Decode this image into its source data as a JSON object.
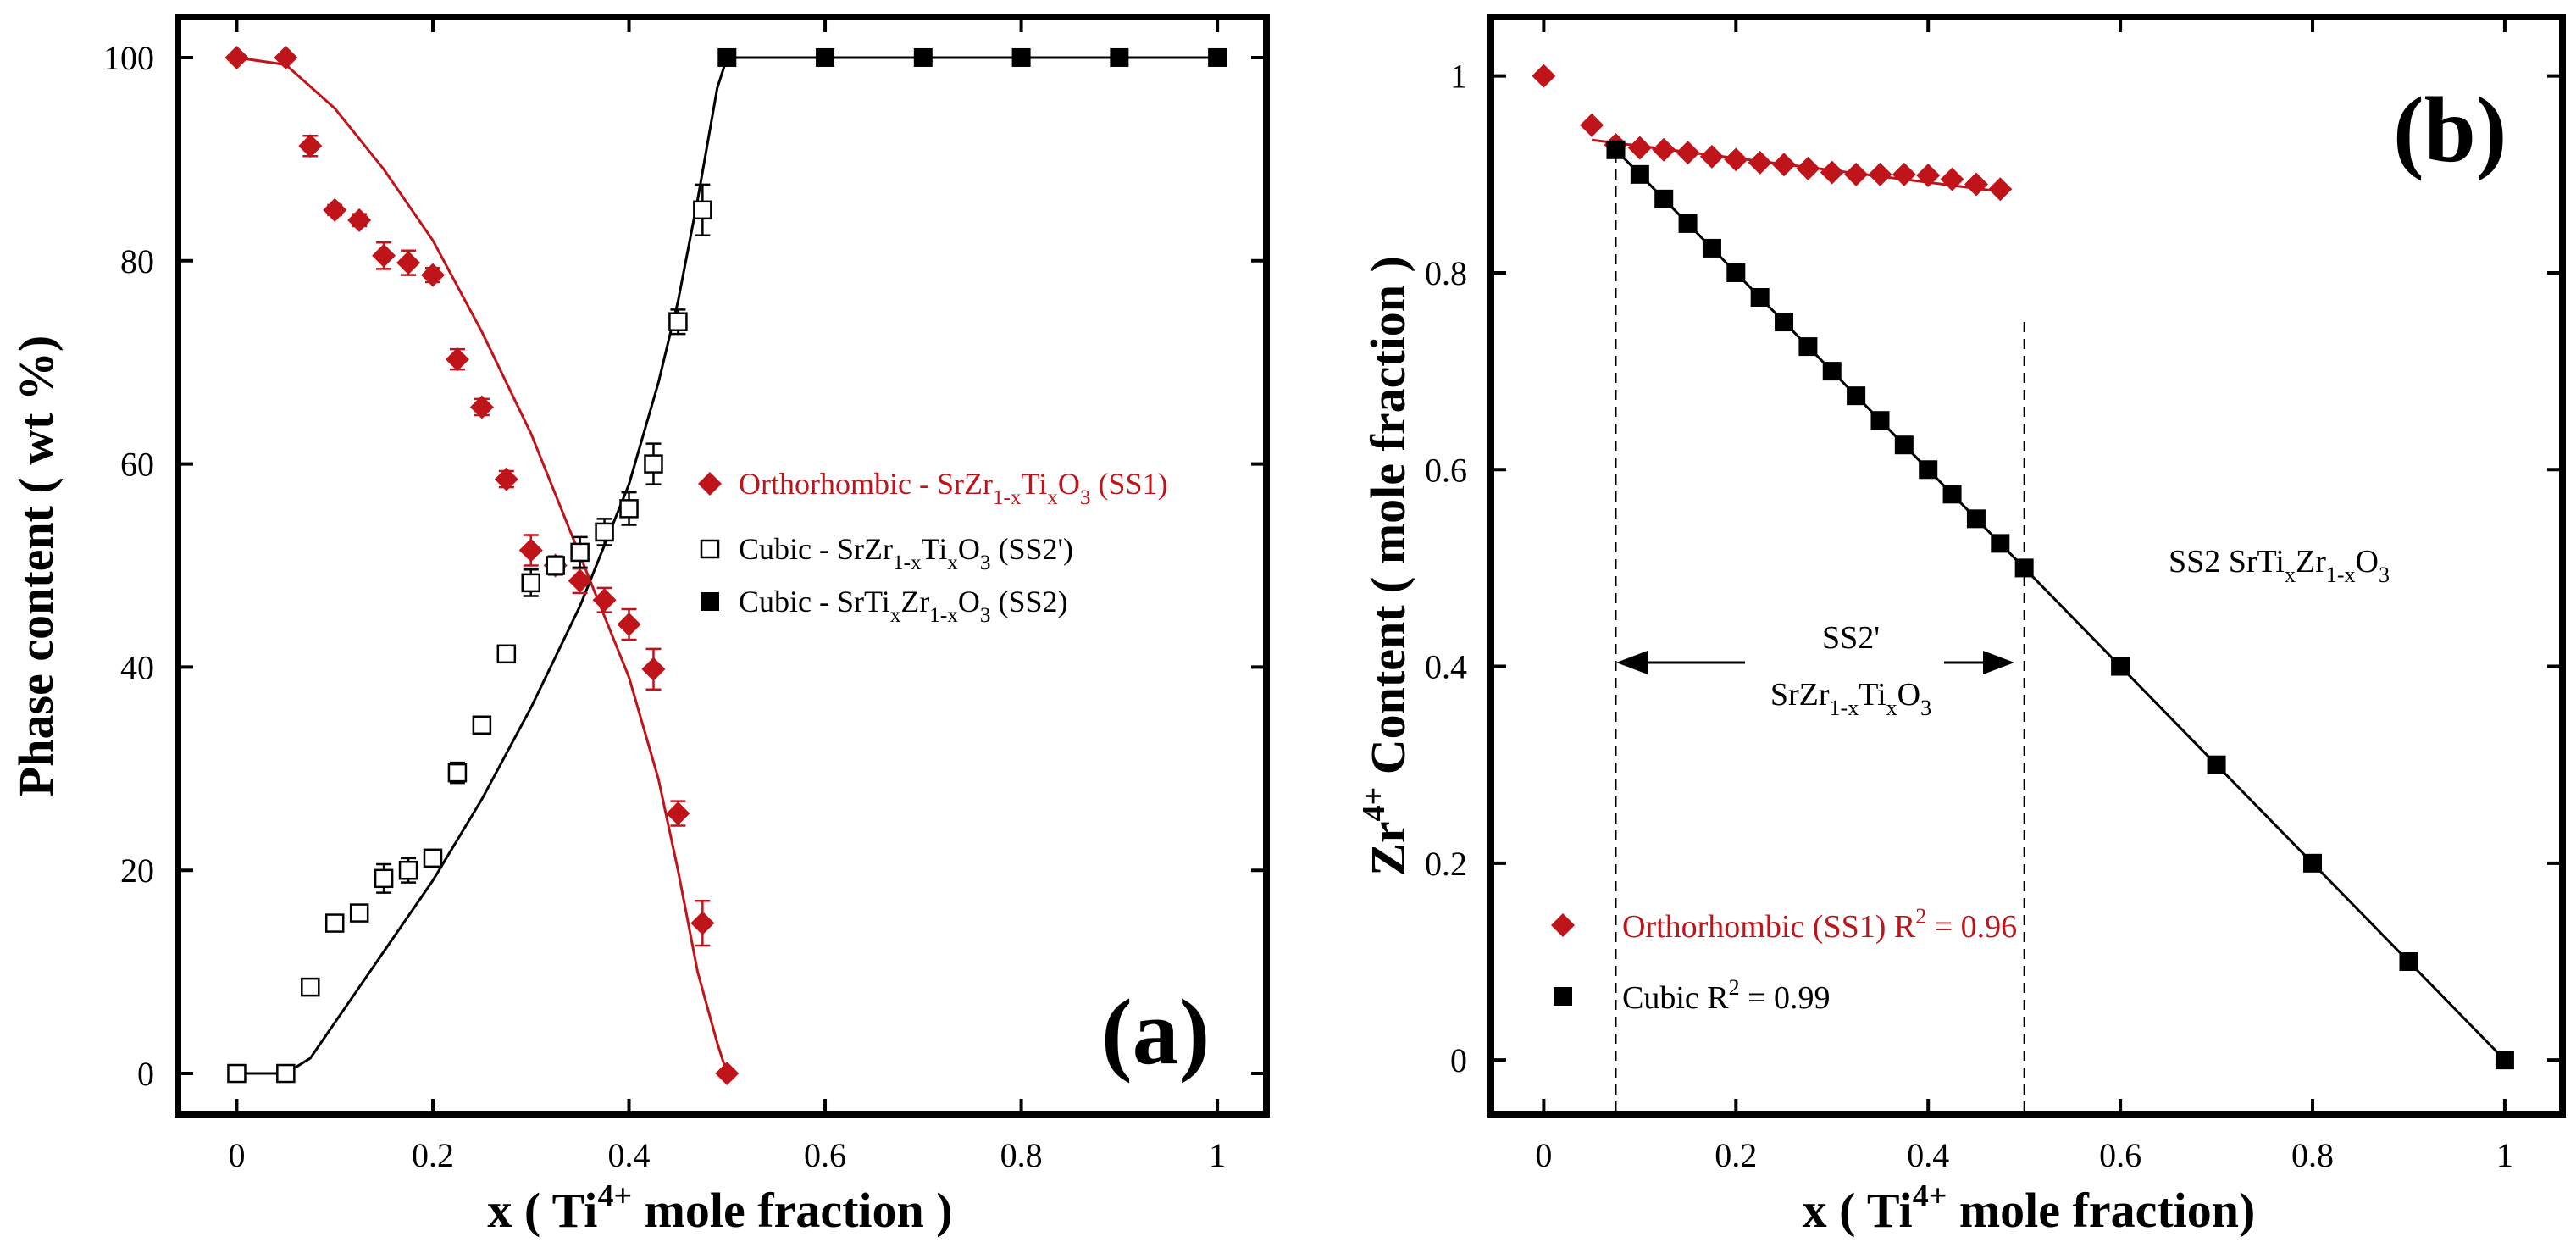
{
  "chart_data": [
    {
      "type": "scatter",
      "panel_label": "(a)",
      "xlabel": {
        "pre": "x ( Ti",
        "sup": "4+",
        "post": " mole fraction )"
      },
      "ylabel": "Phase content ( wt %)",
      "xlim": [
        -0.06,
        1.05
      ],
      "ylim": [
        -4,
        104
      ],
      "xticks": [
        0,
        0.2,
        0.4,
        0.6,
        0.8,
        1
      ],
      "xtick_labels": [
        "0",
        "0.2",
        "0.4",
        "0.6",
        "0.8",
        "1"
      ],
      "yticks": [
        0,
        20,
        40,
        60,
        80,
        100
      ],
      "ytick_labels": [
        "0",
        "20",
        "40",
        "60",
        "80",
        "100"
      ],
      "legend": [
        {
          "marker": "diamond",
          "color": "#c0141b",
          "main": "Orthorhombic - SrZr",
          "sub1": "1-x",
          "mid": "Ti",
          "sub2": "x",
          "mid2": "O",
          "sub3": "3",
          "end": " (SS1)"
        },
        {
          "marker": "open-square",
          "color": "#000000",
          "main": "Cubic - SrZr",
          "sub1": "1-x",
          "mid": "Ti",
          "sub2": "x",
          "mid2": "O",
          "sub3": "3",
          "end": " (SS2')"
        },
        {
          "marker": "filled-square",
          "color": "#000000",
          "main": "Cubic - SrTi",
          "sub1": "x",
          "mid": "Zr",
          "sub2": "1-x",
          "mid2": "O",
          "sub3": "3",
          "end": " (SS2)"
        }
      ],
      "series": [
        {
          "name": "Orthorhombic - SrZr1-xTixO3 (SS1)",
          "marker": "diamond",
          "color": "#c0141b",
          "x": [
            0,
            0.05,
            0.075,
            0.1,
            0.125,
            0.15,
            0.175,
            0.2,
            0.225,
            0.25,
            0.275,
            0.3,
            0.325,
            0.35,
            0.375,
            0.4,
            0.425,
            0.45,
            0.475,
            0.5
          ],
          "y": [
            100,
            100,
            91.3,
            85,
            84,
            80.5,
            79.8,
            78.6,
            70.3,
            65.6,
            58.5,
            51.5,
            50,
            48.5,
            46.6,
            44.2,
            39.8,
            25.6,
            14.8,
            0
          ],
          "err": [
            0,
            0,
            1,
            0.5,
            0.6,
            1.3,
            1.2,
            0.7,
            1,
            0.8,
            0.8,
            1.5,
            0.9,
            1.2,
            1.2,
            1.5,
            2,
            1.2,
            2.2,
            0
          ]
        },
        {
          "name": "Cubic - SrZr1-xTixO3 (SS2')",
          "marker": "open-square",
          "color": "#000000",
          "x": [
            0,
            0.05,
            0.075,
            0.1,
            0.125,
            0.15,
            0.175,
            0.2,
            0.225,
            0.25,
            0.275,
            0.3,
            0.325,
            0.35,
            0.375,
            0.4,
            0.425,
            0.45,
            0.475
          ],
          "y": [
            0,
            0,
            8.5,
            14.8,
            15.8,
            19.2,
            20,
            21.2,
            29.6,
            34.3,
            41.3,
            48.3,
            50,
            51.3,
            53.3,
            55.6,
            60,
            74,
            85
          ],
          "err": [
            0,
            0,
            0.8,
            0.6,
            0.7,
            1.4,
            1.2,
            0.7,
            1,
            0.8,
            0.8,
            1.3,
            0.9,
            1.5,
            1.3,
            1.6,
            2,
            1.2,
            2.5
          ]
        },
        {
          "name": "Cubic - SrTixZr1-xO3 (SS2)",
          "marker": "filled-square",
          "color": "#000000",
          "x": [
            0.5,
            0.6,
            0.7,
            0.8,
            0.9,
            1
          ],
          "y": [
            100,
            100,
            100,
            100,
            100,
            100
          ]
        }
      ],
      "fit_lines": [
        {
          "color": "#c0141b",
          "x": [
            0,
            0.05,
            0.1,
            0.15,
            0.2,
            0.25,
            0.3,
            0.35,
            0.4,
            0.43,
            0.45,
            0.47,
            0.49,
            0.5
          ],
          "y": [
            100,
            99.3,
            95,
            89,
            82,
            73,
            63,
            51,
            39,
            29,
            20,
            10,
            3,
            0
          ]
        },
        {
          "color": "#000000",
          "x": [
            0,
            0.05,
            0.075,
            0.1,
            0.15,
            0.2,
            0.25,
            0.3,
            0.35,
            0.4,
            0.43,
            0.45,
            0.47,
            0.49,
            0.5,
            0.6,
            0.7,
            0.8,
            0.9,
            1
          ],
          "y": [
            0,
            0,
            1.5,
            5,
            12,
            19,
            27,
            36,
            46,
            58,
            68,
            76,
            86,
            97,
            100,
            100,
            100,
            100,
            100,
            100
          ]
        }
      ]
    },
    {
      "type": "scatter",
      "panel_label": "(b)",
      "xlabel": {
        "pre": "x ( Ti",
        "sup": "4+",
        "post": " mole fraction)"
      },
      "ylabel": {
        "pre": "Zr",
        "sup": "4+",
        "post": " Content ( mole fraction )"
      },
      "xlim": [
        -0.055,
        1.06
      ],
      "ylim": [
        -0.055,
        1.06
      ],
      "xticks": [
        0,
        0.2,
        0.4,
        0.6,
        0.8,
        1
      ],
      "xtick_labels": [
        "0",
        "0.2",
        "0.4",
        "0.6",
        "0.8",
        "1"
      ],
      "yticks": [
        0,
        0.2,
        0.4,
        0.6,
        0.8,
        1
      ],
      "ytick_labels": [
        "0",
        "0.2",
        "0.4",
        "0.6",
        "0.8",
        "1"
      ],
      "legend": [
        {
          "marker": "diamond",
          "color": "#c0141b",
          "label": "Orthorhombic (SS1)  R",
          "sup": "2",
          "post": " = 0.96"
        },
        {
          "marker": "filled-square",
          "color": "#000000",
          "label": "Cubic R",
          "sup": "2",
          "post": " = 0.99"
        }
      ],
      "annotations": {
        "ss2_label": {
          "main": "SS2 SrTi",
          "sub1": "x",
          "mid": "Zr",
          "sub2": "1-x",
          "mid2": "O",
          "sub3": "3"
        },
        "ss2p_title": "SS2'",
        "ss2p_formula": {
          "main": "SrZr",
          "sub1": "1-x",
          "mid": "Ti",
          "sub2": "x",
          "mid2": "O",
          "sub3": "3"
        },
        "dashed_x": [
          0.075,
          0.5
        ]
      },
      "series": [
        {
          "name": "Orthorhombic (SS1)",
          "marker": "diamond",
          "color": "#c0141b",
          "x": [
            0,
            0.05,
            0.075,
            0.1,
            0.125,
            0.15,
            0.175,
            0.2,
            0.225,
            0.25,
            0.275,
            0.3,
            0.325,
            0.35,
            0.375,
            0.4,
            0.425,
            0.45,
            0.475
          ],
          "y": [
            1,
            0.95,
            0.93,
            0.927,
            0.925,
            0.922,
            0.918,
            0.915,
            0.912,
            0.91,
            0.906,
            0.902,
            0.9,
            0.9,
            0.9,
            0.899,
            0.895,
            0.89,
            0.885
          ]
        },
        {
          "name": "Cubic",
          "marker": "filled-square",
          "color": "#000000",
          "x": [
            0.075,
            0.1,
            0.125,
            0.15,
            0.175,
            0.2,
            0.225,
            0.25,
            0.275,
            0.3,
            0.325,
            0.35,
            0.375,
            0.4,
            0.425,
            0.45,
            0.475,
            0.5,
            0.6,
            0.7,
            0.8,
            0.9,
            1
          ],
          "y": [
            0.925,
            0.9,
            0.875,
            0.85,
            0.825,
            0.8,
            0.775,
            0.75,
            0.725,
            0.7,
            0.675,
            0.65,
            0.625,
            0.6,
            0.575,
            0.55,
            0.525,
            0.5,
            0.4,
            0.3,
            0.2,
            0.1,
            0
          ]
        }
      ],
      "fit_lines": [
        {
          "color": "#c0141b",
          "x": [
            0.05,
            0.48
          ],
          "y": [
            0.935,
            0.882
          ]
        },
        {
          "color": "#000000",
          "x": [
            0.075,
            1
          ],
          "y": [
            0.925,
            0
          ]
        }
      ]
    }
  ]
}
